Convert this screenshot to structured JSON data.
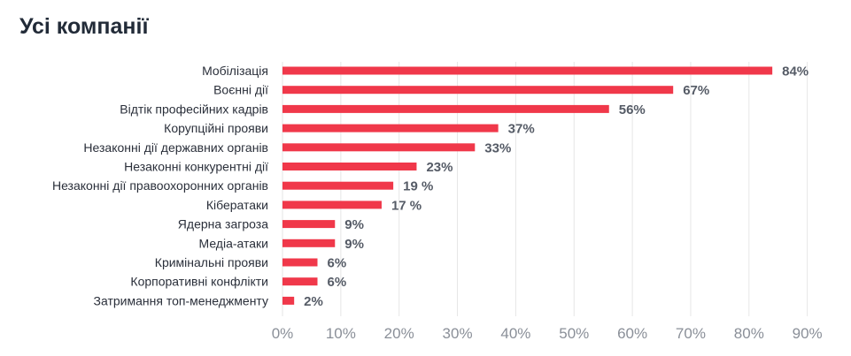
{
  "title": "Усі компанії",
  "colors": {
    "bar": "#f0384a",
    "grid": "#e6e6e6",
    "title": "#222b38"
  },
  "chart_data": {
    "type": "bar",
    "orientation": "horizontal",
    "title": "Усі компанії",
    "xlabel": "",
    "ylabel": "",
    "categories": [
      "Мобілізація",
      "Воєнні дії",
      "Відтік професійних кадрів",
      "Корупційні прояви",
      "Незаконні дії державних органів",
      "Незаконні конкурентні дії",
      "Незаконні дії правоохоронних органів",
      "Кібератаки",
      "Ядерна загроза",
      "Медіа-атаки",
      "Кримінальні прояви",
      "Корпоративні конфлікти",
      "Затримання топ-менеджменту"
    ],
    "values": [
      84,
      67,
      56,
      37,
      33,
      23,
      19,
      17,
      9,
      9,
      6,
      6,
      2
    ],
    "value_labels": [
      "84%",
      "67%",
      "56%",
      "37%",
      "33%",
      "23%",
      "19 %",
      "17 %",
      "9%",
      "9%",
      "6%",
      "6%",
      "2%"
    ],
    "xlim": [
      0,
      90
    ],
    "ticks": [
      0,
      10,
      20,
      30,
      40,
      50,
      60,
      70,
      80,
      90
    ],
    "tick_labels": [
      "0%",
      "10%",
      "20%",
      "30%",
      "40%",
      "50%",
      "60%",
      "70%",
      "80%",
      "90%"
    ],
    "grid": true,
    "legend": "none"
  }
}
